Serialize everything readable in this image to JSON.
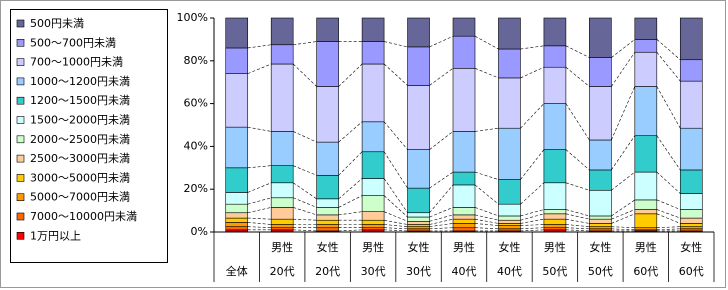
{
  "chart_data": {
    "type": "stacked_bar",
    "categories": [
      [
        "全体"
      ],
      [
        "男性",
        "20代"
      ],
      [
        "女性",
        "20代"
      ],
      [
        "男性",
        "30代"
      ],
      [
        "女性",
        "30代"
      ],
      [
        "男性",
        "40代"
      ],
      [
        "女性",
        "40代"
      ],
      [
        "男性",
        "50代"
      ],
      [
        "女性",
        "50代"
      ],
      [
        "男性",
        "60代"
      ],
      [
        "女性",
        "60代"
      ]
    ],
    "ylim": [
      0,
      100
    ],
    "yticks": [
      {
        "value": 0,
        "label": "0%"
      },
      {
        "value": 20,
        "label": "20%"
      },
      {
        "value": 40,
        "label": "40%"
      },
      {
        "value": 60,
        "label": "60%"
      },
      {
        "value": 80,
        "label": "80%"
      },
      {
        "value": 100,
        "label": "100%"
      }
    ],
    "series_lines": true,
    "series": [
      {
        "name": "1万円以上",
        "color": "#ff0000",
        "values": [
          1,
          1,
          0.5,
          1,
          0.5,
          0.5,
          0.5,
          1,
          0.5,
          0.5,
          0.5
        ]
      },
      {
        "name": "7000～10000円未満",
        "color": "#ff6600",
        "values": [
          1.5,
          1,
          1.5,
          1,
          1,
          1.5,
          1,
          1,
          1,
          0.5,
          1
        ]
      },
      {
        "name": "5000～7000円未満",
        "color": "#ff9900",
        "values": [
          2,
          1.5,
          1.5,
          1.5,
          1,
          2,
          1.5,
          1.5,
          1,
          1,
          1
        ]
      },
      {
        "name": "3000～5000円未満",
        "color": "#ffcc00",
        "values": [
          2,
          2.5,
          2,
          2,
          1,
          2,
          1,
          2.5,
          1.5,
          6.5,
          1.5
        ]
      },
      {
        "name": "2500～3000円未満",
        "color": "#ffcc99",
        "values": [
          2.5,
          5.5,
          2.5,
          4,
          1.5,
          2,
          1.5,
          2.5,
          2,
          2,
          2.5
        ]
      },
      {
        "name": "2000～2500円未満",
        "color": "#ccffcc",
        "values": [
          4,
          4.5,
          3.5,
          7.5,
          2,
          3.5,
          2,
          2,
          1.5,
          4.5,
          4
        ]
      },
      {
        "name": "1500～2000円未満",
        "color": "#ccffff",
        "values": [
          5.5,
          7,
          4,
          8,
          2,
          10.5,
          5.5,
          12.5,
          12,
          13,
          7.5
        ]
      },
      {
        "name": "1200～1500円未満",
        "color": "#33cccc",
        "values": [
          11.5,
          8,
          11,
          12.5,
          11.5,
          6,
          11.5,
          15.5,
          9.5,
          17,
          11
        ]
      },
      {
        "name": "1000～1200円未満",
        "color": "#99ccff",
        "values": [
          19,
          16,
          15.5,
          14,
          18,
          19,
          24,
          21.5,
          14,
          23,
          19.5
        ]
      },
      {
        "name": "700～1000円未満",
        "color": "#ccccff",
        "values": [
          25,
          31.5,
          26,
          27,
          30,
          29.5,
          23.5,
          17,
          25,
          16,
          22
        ]
      },
      {
        "name": "500～700円未満",
        "color": "#9999ff",
        "values": [
          12,
          9,
          21,
          10.5,
          18,
          15,
          13.5,
          10,
          13.5,
          6,
          10
        ]
      },
      {
        "name": "500円未満",
        "color": "#666699",
        "values": [
          14,
          12.5,
          11,
          11,
          13.5,
          8.5,
          14.5,
          13,
          18.5,
          10,
          19.5
        ]
      }
    ]
  }
}
